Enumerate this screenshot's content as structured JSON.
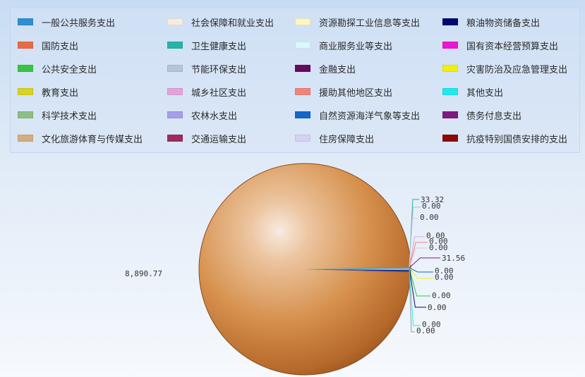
{
  "chart_data": {
    "type": "pie",
    "legend_position": "top",
    "series": [
      {
        "name": "一般公共服务支出",
        "color": "#2f8fd2",
        "value": null
      },
      {
        "name": "社会保障和就业支出",
        "color": "#f4ecde",
        "value": null
      },
      {
        "name": "资源勘探工业信息等支出",
        "color": "#fbf6c3",
        "value": null
      },
      {
        "name": "粮油物资储备支出",
        "color": "#06066f",
        "value": null
      },
      {
        "name": "国防支出",
        "color": "#ec6a42",
        "value": null
      },
      {
        "name": "卫生健康支出",
        "color": "#27b3a7",
        "value": null
      },
      {
        "name": "商业服务业等支出",
        "color": "#dbf7fb",
        "value": null
      },
      {
        "name": "国有资本经营预算支出",
        "color": "#ee13d6",
        "value": null
      },
      {
        "name": "公共安全支出",
        "color": "#36c442",
        "value": null
      },
      {
        "name": "节能环保支出",
        "color": "#b5c5d8",
        "value": null
      },
      {
        "name": "金融支出",
        "color": "#650a5e",
        "value": null
      },
      {
        "name": "灾害防治及应急管理支出",
        "color": "#f2ef0d",
        "value": null
      },
      {
        "name": "教育支出",
        "color": "#d8d322",
        "value": null
      },
      {
        "name": "城乡社区支出",
        "color": "#e3a3d8",
        "value": null
      },
      {
        "name": "援助其他地区支出",
        "color": "#f2837b",
        "value": null
      },
      {
        "name": "其他支出",
        "color": "#1ee9ef",
        "value": null
      },
      {
        "name": "科学技术支出",
        "color": "#8fbd86",
        "value": null
      },
      {
        "name": "农林水支出",
        "color": "#a79de8",
        "value": null
      },
      {
        "name": "自然资源海洋气象等支出",
        "color": "#1467c8",
        "value": null
      },
      {
        "name": "债务付息支出",
        "color": "#801a80",
        "value": null
      },
      {
        "name": "文化旅游体育与传媒支出",
        "color": "#d3ad80",
        "value": 8890.77
      },
      {
        "name": "交通运输支出",
        "color": "#9c2c5b",
        "value": null
      },
      {
        "name": "住房保障支出",
        "color": "#d5d1f4",
        "value": null
      },
      {
        "name": "抗疫特别国债安排的支出",
        "color": "#8a0a0a",
        "value": null
      }
    ],
    "data_labels": [
      {
        "text": "8,890.77",
        "value": 8890.77,
        "series": "文化旅游体育与传媒支出"
      },
      {
        "text": "33.32",
        "value": 33.32,
        "series": "卫生健康支出"
      },
      {
        "text": "0.00",
        "value": 0.0,
        "series": null
      },
      {
        "text": "0.00",
        "value": 0.0,
        "series": null
      },
      {
        "text": "0.00",
        "value": 0.0,
        "series": null
      },
      {
        "text": "0.00",
        "value": 0.0,
        "series": null
      },
      {
        "text": "0.00",
        "value": 0.0,
        "series": null
      },
      {
        "text": "31.56",
        "value": 31.56,
        "series": "城乡社区支出"
      },
      {
        "text": "0.00",
        "value": 0.0,
        "series": null
      },
      {
        "text": "0.00",
        "value": 0.0,
        "series": null
      },
      {
        "text": "0.00",
        "value": 0.0,
        "series": null
      },
      {
        "text": "0.00",
        "value": 0.0,
        "series": null
      },
      {
        "text": "0.00",
        "value": 0.0,
        "series": null
      },
      {
        "text": "0.00",
        "value": 0.0,
        "series": null
      }
    ]
  }
}
